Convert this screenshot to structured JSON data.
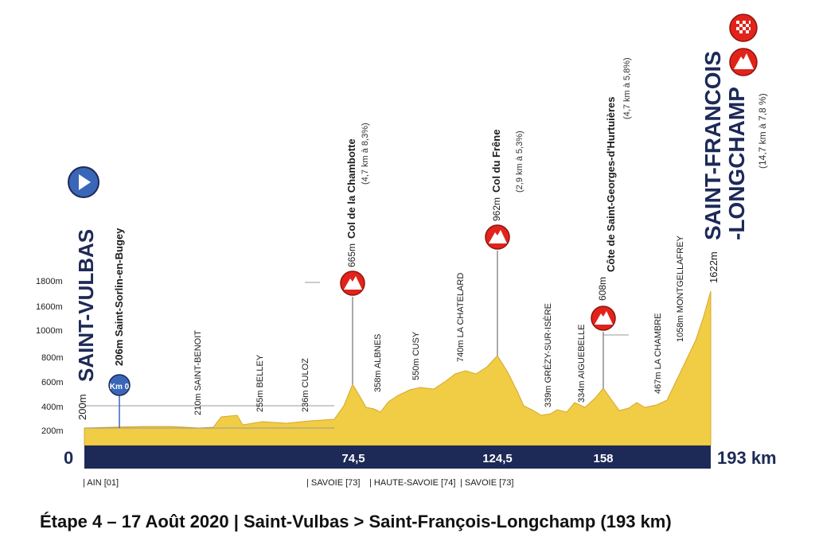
{
  "caption": "Étape 4 – 17 Août 2020 | Saint-Vulbas > Saint-François-Longchamp (193 km)",
  "colors": {
    "terrain": "#f1cc45",
    "terrain_edge": "#d4a92a",
    "bar": "#1d2a57",
    "climb": "#e2231a",
    "start": "#3a66b8"
  },
  "start": {
    "city": "SAINT-VULBAS",
    "km0_label": "Km 0",
    "start_alt": "200m",
    "km0_place": "206m Saint-Sorlin-en-Bugey",
    "icon": "play-icon"
  },
  "finish": {
    "city_line1": "SAINT-FRANCOIS",
    "city_line2": "-LONGCHAMP",
    "detail": "(14,7 km à 7,8 %)",
    "altitude": "1622m",
    "icons": [
      "checkered-flag-icon",
      "mountain-icon"
    ]
  },
  "y_axis": [
    "200m",
    "400m",
    "600m",
    "800m",
    "1000m",
    "1600m",
    "1800m"
  ],
  "bar": {
    "start": "0",
    "end": "193 km",
    "marks": [
      "74,5",
      "124,5",
      "158"
    ]
  },
  "departments": [
    "| AIN [01]",
    "| SAVOIE [73] ",
    "| HAUTE-SAVOIE [74] ",
    "| SAVOIE [73]"
  ],
  "places": [
    "210m SAINT-BENOIT",
    "255m BELLEY",
    "236m CULOZ",
    "358m ALBNES",
    "550m CUSY",
    "740m LA CHATELARD",
    "339m GRÉZY-SUR-ISÈRE",
    "334m AIGUEBELLE",
    "467m LA CHAMBRE",
    "1058m MONTGELLAFREY"
  ],
  "climbs": [
    {
      "alt": "665m",
      "name": "Col de la Chambotte",
      "detail": "(4,7 km à 8,3%)"
    },
    {
      "alt": "962m",
      "name": "Col du Frêne",
      "detail": "(2,9 km à 5,3%)"
    },
    {
      "alt": "608m",
      "name": "Côte de Saint-Georges-d'Hurtuières",
      "detail": "(4,7 km à 5,8%)"
    }
  ]
}
